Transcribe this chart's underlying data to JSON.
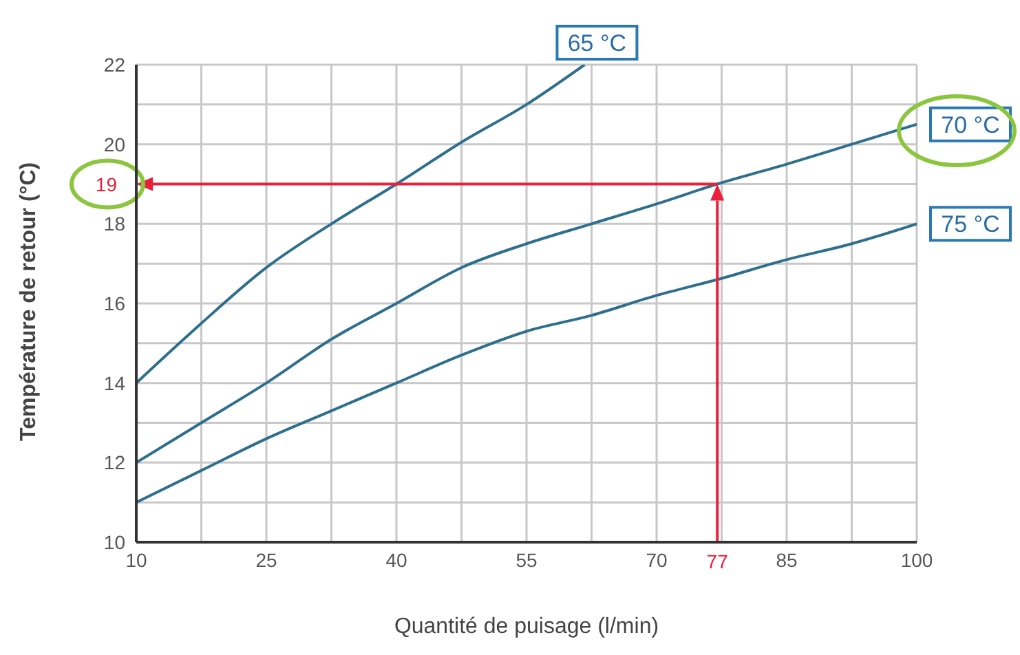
{
  "chart_data": {
    "type": "line",
    "xlabel": "Quantité de puisage (l/min)",
    "ylabel": "Température de retour (°C)",
    "xlim": [
      10,
      100
    ],
    "xticks": [
      10,
      {
        "value": 17.5,
        "label": null
      },
      25,
      {
        "value": 32.5,
        "label": null
      },
      40,
      {
        "value": 47.5,
        "label": null
      },
      55,
      {
        "value": 62.5,
        "label": null
      },
      70,
      {
        "value": 77.5,
        "label": null
      },
      85,
      {
        "value": 92.5,
        "label": null
      },
      100
    ],
    "ylim": [
      10,
      22
    ],
    "yticks": [
      10,
      {
        "value": 11,
        "label": null
      },
      12,
      {
        "value": 13,
        "label": null
      },
      14,
      {
        "value": 15,
        "label": null
      },
      16,
      {
        "value": 17,
        "label": null
      },
      18,
      {
        "value": 19,
        "label": null
      },
      20,
      {
        "value": 21,
        "label": null
      },
      22
    ],
    "grid": true,
    "legend": false,
    "marker": "none",
    "series": [
      {
        "name": "65 °C",
        "color": "#2e6f8e",
        "x": [
          10,
          17.5,
          25,
          32.5,
          40,
          47.5,
          55,
          61.7
        ],
        "values": [
          14,
          15.5,
          16.9,
          18,
          19,
          20.05,
          21,
          22
        ]
      },
      {
        "name": "70 °C",
        "color": "#2e6f8e",
        "x": [
          10,
          17.5,
          25,
          32.5,
          40,
          47.5,
          55,
          62.5,
          70,
          77,
          85,
          92.5,
          100
        ],
        "values": [
          12,
          13,
          14,
          15.1,
          16,
          16.9,
          17.5,
          18,
          18.5,
          19,
          19.5,
          20,
          20.5
        ]
      },
      {
        "name": "75 °C",
        "color": "#2e6f8e",
        "x": [
          10,
          17.5,
          25,
          32.5,
          40,
          47.5,
          55,
          62.5,
          70,
          77,
          85,
          92.5,
          100
        ],
        "values": [
          11,
          11.8,
          12.6,
          13.3,
          14,
          14.7,
          15.3,
          15.7,
          16.2,
          16.6,
          17.1,
          17.5,
          18
        ]
      }
    ],
    "ref_lines": [
      {
        "axis": "y",
        "value": 19,
        "label": "19",
        "color": "#e8203c"
      },
      {
        "axis": "x",
        "value": 77,
        "label": "77",
        "color": "#e8203c"
      }
    ]
  }
}
